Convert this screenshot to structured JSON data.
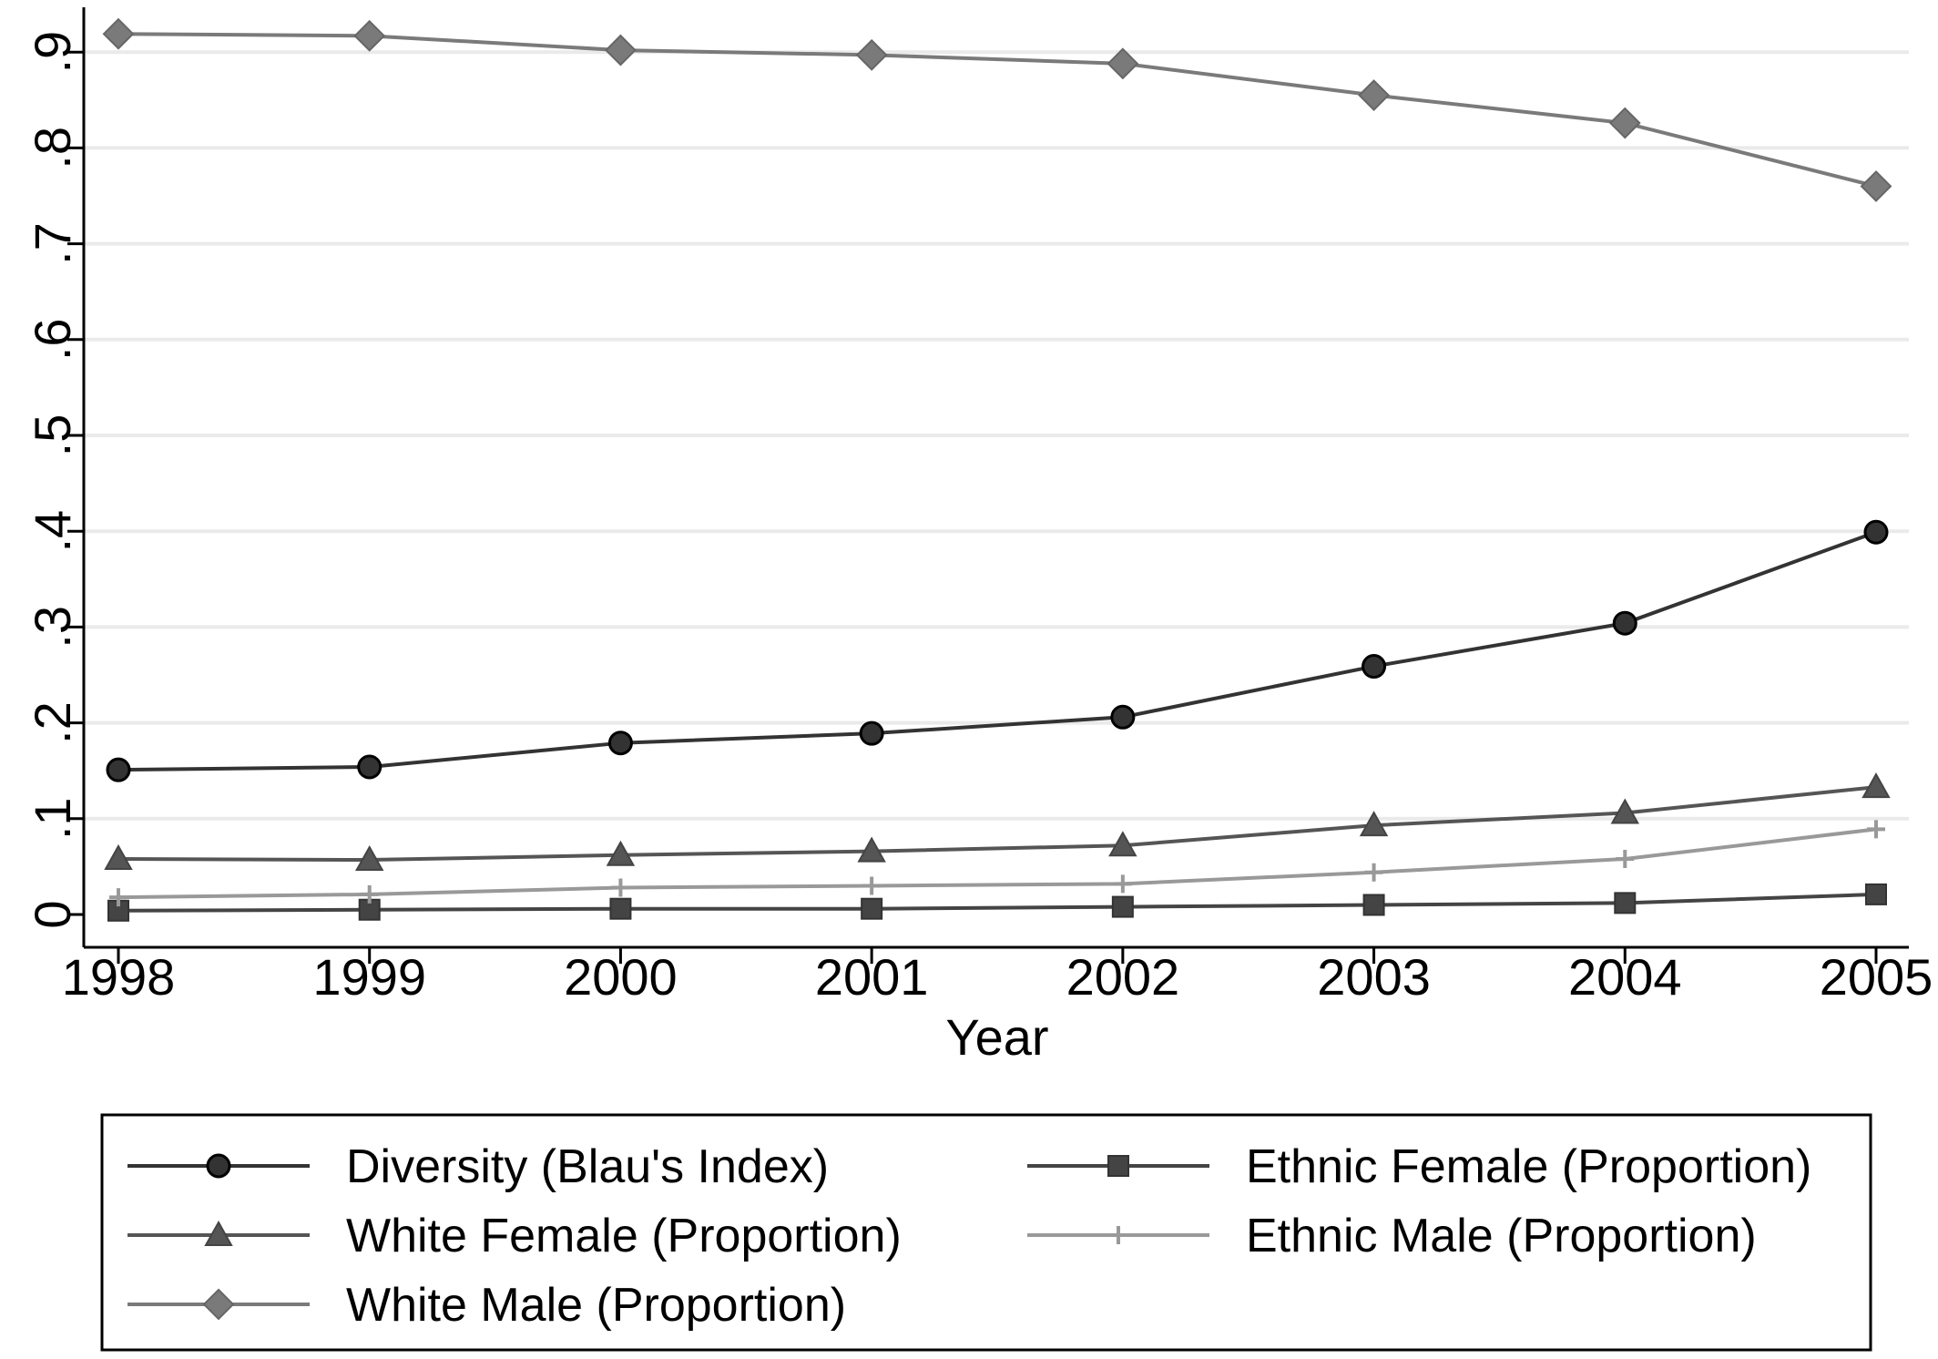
{
  "chart_data": {
    "type": "line",
    "title": "",
    "xlabel": "Year",
    "ylabel": "",
    "x": [
      1998,
      1999,
      2000,
      2001,
      2002,
      2003,
      2004,
      2005
    ],
    "x_tick_labels": [
      "1998",
      "1999",
      "2000",
      "2001",
      "2002",
      "2003",
      "2004",
      "2005"
    ],
    "y_ticks": [
      0,
      0.1,
      0.2,
      0.3,
      0.4,
      0.5,
      0.6,
      0.7,
      0.8,
      0.9
    ],
    "y_tick_labels": [
      "0",
      ".1",
      ".2",
      ".3",
      ".4",
      ".5",
      ".6",
      ".7",
      ".8",
      ".9"
    ],
    "ylim": [
      0,
      0.92
    ],
    "grid": "horizontal",
    "legend_position": "bottom",
    "series": [
      {
        "name": "Diversity (Blau's Index)",
        "marker": "circle",
        "color": "#333333",
        "values": [
          0.151,
          0.154,
          0.179,
          0.189,
          0.206,
          0.259,
          0.304,
          0.399
        ]
      },
      {
        "name": "Ethnic Female (Proportion)",
        "marker": "square",
        "color": "#444444",
        "values": [
          0.004,
          0.005,
          0.006,
          0.006,
          0.008,
          0.01,
          0.012,
          0.021
        ]
      },
      {
        "name": "White Female (Proportion)",
        "marker": "triangle",
        "color": "#555555",
        "values": [
          0.058,
          0.057,
          0.062,
          0.066,
          0.072,
          0.093,
          0.106,
          0.133
        ]
      },
      {
        "name": "Ethnic Male (Proportion)",
        "marker": "plus",
        "color": "#999999",
        "values": [
          0.018,
          0.021,
          0.028,
          0.03,
          0.032,
          0.044,
          0.058,
          0.089
        ]
      },
      {
        "name": "White Male (Proportion)",
        "marker": "diamond",
        "color": "#7a7a7a",
        "values": [
          0.919,
          0.917,
          0.902,
          0.897,
          0.888,
          0.855,
          0.826,
          0.76
        ]
      }
    ]
  }
}
